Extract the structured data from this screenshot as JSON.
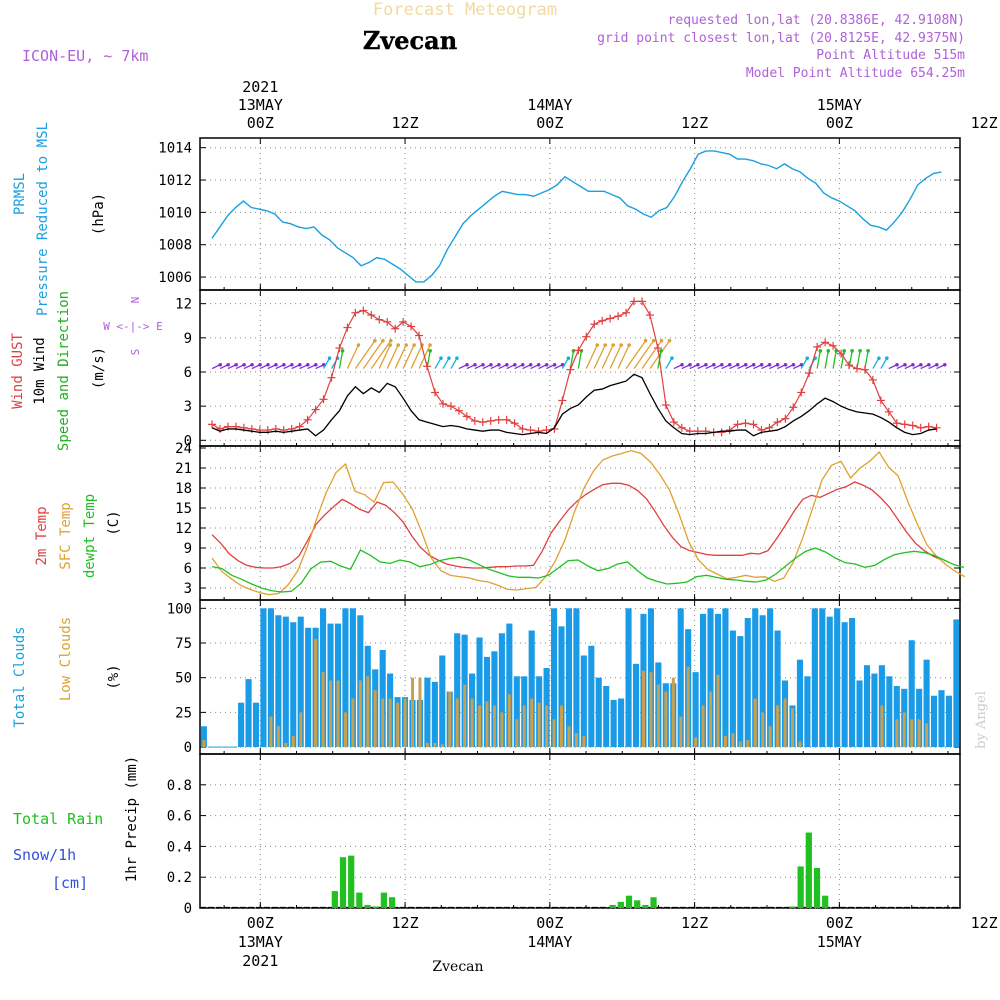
{
  "header": {
    "title": "Forecast Meteogram",
    "location": "Zvecan",
    "model": "ICON-EU, ~ 7km",
    "requested": "requested lon,lat (20.8386E, 42.9108N)",
    "gridpoint": "grid point closest lon,lat (20.8125E, 42.9375N)",
    "point_alt": "Point Altitude 515m",
    "model_alt": "Model Point Altitude 654.25m",
    "footer": "Zvecan",
    "watermark": "by Angel"
  },
  "time_axis": {
    "top_labels": [
      {
        "line1": "2021",
        "line2": "13MAY",
        "line3": "00Z"
      },
      {
        "line1": "",
        "line2": "",
        "line3": "12Z"
      },
      {
        "line1": "",
        "line2": "14MAY",
        "line3": "00Z"
      },
      {
        "line1": "",
        "line2": "",
        "line3": "12Z"
      },
      {
        "line1": "",
        "line2": "15MAY",
        "line3": "00Z"
      },
      {
        "line1": "",
        "line2": "",
        "line3": "12Z"
      }
    ],
    "bottom_labels": [
      {
        "line1": "00Z",
        "line2": "13MAY",
        "line3": "2021"
      },
      {
        "line1": "12Z",
        "line2": "",
        "line3": ""
      },
      {
        "line1": "00Z",
        "line2": "14MAY",
        "line3": ""
      },
      {
        "line1": "12Z",
        "line2": "",
        "line3": ""
      },
      {
        "line1": "00Z",
        "line2": "15MAY",
        "line3": ""
      },
      {
        "line1": "12Z",
        "line2": "",
        "line3": ""
      }
    ],
    "start_hour": -5,
    "end_hour": 58
  },
  "chart_data": [
    {
      "type": "line",
      "id": "pressure",
      "ylabel_lines": [
        "PRMSL",
        "Pressure Reduced to MSL"
      ],
      "unit": "(hPa)",
      "color": "#1aa0e0",
      "ylim": [
        1005.2,
        1014.6
      ],
      "yticks": [
        1006,
        1008,
        1010,
        1012,
        1014
      ],
      "start_hour": -4,
      "values": [
        1008.4,
        1009.1,
        1009.8,
        1010.3,
        1010.7,
        1010.3,
        1010.2,
        1010.1,
        1009.9,
        1009.4,
        1009.3,
        1009.1,
        1009.0,
        1009.1,
        1008.6,
        1008.3,
        1007.8,
        1007.5,
        1007.2,
        1006.7,
        1006.9,
        1007.2,
        1007.1,
        1006.8,
        1006.5,
        1006.1,
        1005.7,
        1005.7,
        1006.1,
        1006.7,
        1007.7,
        1008.5,
        1009.3,
        1009.8,
        1010.2,
        1010.6,
        1011.0,
        1011.3,
        1011.2,
        1011.1,
        1011.1,
        1011.0,
        1011.2,
        1011.4,
        1011.7,
        1012.2,
        1011.9,
        1011.6,
        1011.3,
        1011.3,
        1011.3,
        1011.1,
        1010.9,
        1010.4,
        1010.2,
        1009.9,
        1009.7,
        1010.1,
        1010.3,
        1011.0,
        1011.9,
        1012.7,
        1013.6,
        1013.8,
        1013.8,
        1013.7,
        1013.6,
        1013.3,
        1013.3,
        1013.2,
        1013.0,
        1012.9,
        1012.7,
        1013.0,
        1012.7,
        1012.5,
        1012.1,
        1011.8,
        1011.2,
        1010.9,
        1010.7,
        1010.4,
        1010.1,
        1009.6,
        1009.2,
        1009.1,
        1008.9,
        1009.4,
        1010.0,
        1010.8,
        1011.7,
        1012.1,
        1012.4,
        1012.5
      ]
    },
    {
      "type": "line",
      "id": "wind",
      "ylabel_lines": [
        "Wind GUST",
        "10m Wind",
        "Speed and Direction"
      ],
      "unit": "(m/s)",
      "compass": [
        "N",
        "W <-|-> E",
        "S"
      ],
      "ylim": [
        -0.5,
        13.2
      ],
      "yticks": [
        0,
        3,
        6,
        9,
        12
      ],
      "start_hour": -4,
      "series": [
        {
          "name": "Wind GUST",
          "color": "#e04040",
          "values": [
            1.4,
            1.0,
            1.2,
            1.2,
            1.1,
            1.0,
            0.9,
            0.9,
            1.0,
            0.9,
            1.0,
            1.2,
            1.8,
            2.7,
            3.6,
            5.5,
            8.1,
            9.9,
            11.2,
            11.4,
            11.0,
            10.6,
            10.4,
            9.8,
            10.4,
            10.0,
            9.2,
            6.5,
            4.2,
            3.2,
            3.0,
            2.6,
            2.1,
            1.7,
            1.6,
            1.7,
            1.8,
            1.8,
            1.5,
            1.0,
            0.9,
            0.8,
            0.9,
            1.0,
            3.5,
            6.2,
            7.9,
            9.1,
            10.2,
            10.5,
            10.7,
            10.9,
            11.2,
            12.2,
            12.2,
            11.0,
            8.1,
            3.1,
            1.6,
            1.1,
            0.8,
            0.8,
            0.8,
            0.7,
            0.7,
            0.9,
            1.4,
            1.5,
            1.4,
            0.9,
            1.1,
            1.6,
            1.9,
            2.9,
            4.2,
            5.9,
            8.2,
            8.6,
            8.3,
            7.6,
            6.6,
            6.3,
            6.2,
            5.3,
            3.5,
            2.5,
            1.5,
            1.4,
            1.3,
            1.1,
            1.2,
            1.1
          ]
        },
        {
          "name": "10m Wind",
          "color": "#000000",
          "values": [
            1.1,
            0.8,
            1.0,
            1.0,
            0.9,
            0.8,
            0.7,
            0.7,
            0.8,
            0.7,
            0.8,
            0.9,
            1.0,
            0.4,
            0.9,
            1.8,
            2.6,
            3.9,
            4.7,
            4.1,
            4.6,
            4.2,
            5.0,
            4.7,
            3.7,
            2.6,
            1.8,
            1.6,
            1.4,
            1.2,
            1.3,
            1.2,
            1.0,
            0.9,
            0.8,
            0.9,
            0.9,
            0.7,
            0.6,
            0.5,
            0.6,
            0.7,
            0.6,
            1.1,
            2.3,
            2.8,
            3.1,
            3.8,
            4.4,
            4.5,
            4.8,
            5.0,
            5.2,
            5.8,
            5.5,
            4.1,
            2.8,
            1.7,
            1.1,
            0.6,
            0.5,
            0.6,
            0.6,
            0.7,
            0.8,
            0.8,
            0.9,
            0.9,
            0.4,
            0.7,
            0.8,
            0.9,
            1.2,
            1.7,
            2.1,
            2.6,
            3.2,
            3.7,
            3.4,
            3.0,
            2.7,
            2.5,
            2.4,
            2.3,
            2.0,
            1.6,
            1.1,
            0.7,
            0.5,
            0.6,
            0.9,
            1.0
          ]
        }
      ]
    },
    {
      "type": "line",
      "id": "temperature",
      "ylabel_lines": [
        "2m Temp",
        "SFC Temp",
        "dewpt Temp"
      ],
      "unit": "(C)",
      "ylim": [
        1.2,
        24.3
      ],
      "yticks": [
        3,
        6,
        9,
        12,
        15,
        18,
        21,
        24
      ],
      "start_hour": -4,
      "series": [
        {
          "name": "2m Temp",
          "color": "#e04040",
          "values": [
            11.0,
            9.7,
            8.1,
            7.1,
            6.4,
            6.1,
            6.0,
            6.0,
            6.2,
            6.7,
            7.8,
            10.1,
            12.6,
            14.0,
            15.2,
            16.3,
            15.6,
            14.8,
            14.3,
            15.9,
            15.4,
            14.3,
            12.9,
            10.8,
            9.1,
            7.9,
            7.2,
            6.6,
            6.3,
            6.1,
            6.0,
            6.0,
            6.1,
            6.2,
            6.2,
            6.3,
            6.3,
            6.4,
            8.5,
            11.2,
            13.0,
            14.7,
            16.0,
            17.0,
            17.8,
            18.5,
            18.7,
            18.7,
            18.4,
            17.6,
            16.4,
            14.5,
            12.4,
            10.6,
            9.2,
            8.6,
            8.3,
            8.0,
            7.9,
            7.9,
            7.9,
            7.9,
            8.2,
            8.1,
            8.6,
            10.4,
            12.4,
            14.5,
            16.3,
            16.9,
            16.6,
            17.2,
            17.8,
            18.2,
            18.9,
            18.4,
            17.7,
            16.5,
            15.1,
            13.2,
            11.3,
            9.7,
            8.6,
            7.8,
            7.2
          ]
        },
        {
          "name": "SFC Temp",
          "color": "#e0a030",
          "values": [
            7.5,
            5.5,
            4.4,
            3.4,
            2.8,
            2.3,
            2.0,
            2.2,
            3.5,
            5.6,
            9.2,
            13.5,
            17.4,
            20.3,
            21.6,
            17.5,
            17.0,
            15.9,
            18.8,
            18.9,
            17.1,
            14.9,
            11.4,
            7.5,
            5.6,
            4.9,
            4.7,
            4.5,
            4.1,
            3.9,
            3.4,
            2.8,
            2.7,
            2.9,
            3.1,
            4.7,
            7.0,
            10.1,
            14.3,
            17.9,
            20.5,
            22.2,
            22.8,
            23.2,
            23.6,
            23.2,
            21.9,
            20.0,
            17.7,
            14.1,
            10.0,
            7.3,
            5.8,
            5.1,
            4.4,
            4.6,
            4.9,
            4.6,
            4.7,
            4.0,
            4.5,
            6.9,
            10.6,
            14.9,
            19.2,
            21.4,
            22.0,
            19.5,
            21.0,
            22.0,
            23.4,
            21.1,
            19.8,
            16.0,
            12.6,
            9.5,
            7.8,
            6.5,
            5.5,
            4.7
          ]
        },
        {
          "name": "dewpt Temp",
          "color": "#20c020",
          "values": [
            6.2,
            5.9,
            4.9,
            4.3,
            3.6,
            3.0,
            2.6,
            2.4,
            2.5,
            3.7,
            5.9,
            6.9,
            7.0,
            6.3,
            5.8,
            8.7,
            7.9,
            6.9,
            6.7,
            7.2,
            6.9,
            6.2,
            6.5,
            7.1,
            7.4,
            7.6,
            7.2,
            6.5,
            5.8,
            5.3,
            4.8,
            4.6,
            4.6,
            4.5,
            4.9,
            6.0,
            7.1,
            7.2,
            6.3,
            5.6,
            5.9,
            6.6,
            6.9,
            5.6,
            4.5,
            4.0,
            3.6,
            3.7,
            3.9,
            4.7,
            4.9,
            4.6,
            4.3,
            4.2,
            4.0,
            3.9,
            4.2,
            5.1,
            6.3,
            7.5,
            8.5,
            9.0,
            8.4,
            7.5,
            6.8,
            6.6,
            6.1,
            6.4,
            7.3,
            8.0,
            8.3,
            8.5,
            8.3,
            7.9,
            7.2,
            6.5,
            6.1
          ]
        }
      ]
    },
    {
      "type": "bar",
      "id": "clouds",
      "ylabel_lines": [
        "Total Clouds",
        "Low Clouds"
      ],
      "unit": "(%)",
      "ylim": [
        -5,
        106
      ],
      "yticks": [
        0,
        25,
        50,
        75,
        100
      ],
      "start_hour": -4,
      "series": [
        {
          "name": "Total Clouds",
          "color": "#1a9be8",
          "values": [
            15,
            0,
            0,
            0,
            0,
            32,
            49,
            32,
            100,
            100,
            95,
            94,
            90,
            94,
            86,
            86,
            100,
            89,
            89,
            100,
            100,
            95,
            73,
            56,
            70,
            53,
            36,
            36,
            34,
            34,
            50,
            47,
            66,
            40,
            82,
            81,
            53,
            79,
            65,
            69,
            82,
            89,
            51,
            51,
            84,
            51,
            57,
            100,
            87,
            100,
            100,
            66,
            73,
            50,
            44,
            34,
            35,
            100,
            60,
            96,
            100,
            61,
            46,
            46,
            100,
            85,
            54,
            96,
            100,
            96,
            100,
            84,
            80,
            93,
            100,
            95,
            100,
            84,
            48,
            30,
            63,
            51,
            100,
            100,
            94,
            100,
            90,
            93,
            48,
            59,
            53,
            59,
            51,
            44,
            42,
            77,
            42,
            63,
            37,
            41,
            37,
            92
          ]
        },
        {
          "name": "Low Clouds",
          "color": "#c8a050",
          "values": [
            5,
            0,
            0,
            0,
            0,
            0,
            0,
            0,
            0,
            22,
            15,
            3,
            8,
            25,
            0,
            78,
            54,
            48,
            48,
            25,
            35,
            48,
            51,
            41,
            35,
            35,
            32,
            35,
            50,
            50,
            3,
            3,
            2,
            40,
            35,
            45,
            35,
            30,
            33,
            30,
            25,
            38,
            20,
            30,
            35,
            32,
            30,
            20,
            30,
            15,
            10,
            8,
            0,
            0,
            0,
            0,
            0,
            0,
            0,
            55,
            54,
            45,
            40,
            50,
            22,
            58,
            7,
            30,
            40,
            52,
            8,
            10,
            4,
            5,
            35,
            25,
            15,
            30,
            35,
            28,
            4,
            0,
            0,
            0,
            0,
            0,
            0,
            0,
            0,
            0,
            0,
            30,
            0,
            20,
            25,
            20,
            20,
            17
          ]
        }
      ]
    },
    {
      "type": "bar",
      "id": "precip",
      "ylabel_lines": [
        "1hr Precip (mm)"
      ],
      "side_labels": [
        "Total  Rain",
        "Snow/1h",
        "[cm]"
      ],
      "ylim": [
        0,
        1.0
      ],
      "yticks": [
        0,
        0.2,
        0.4,
        0.6,
        0.8
      ],
      "ytick_labels": [
        "0",
        "0.2",
        "0.4",
        "0.6",
        "0.8"
      ],
      "start_hour": -4,
      "series": [
        {
          "name": "Total Rain",
          "color": "#20c020",
          "values": [
            0,
            0,
            0,
            0,
            0,
            0,
            0,
            0,
            0,
            0,
            0,
            0,
            0,
            0,
            0,
            0,
            0.11,
            0.33,
            0.34,
            0.1,
            0.02,
            0.01,
            0.1,
            0.07,
            0,
            0,
            0,
            0,
            0,
            0,
            0,
            0,
            0,
            0,
            0,
            0,
            0,
            0,
            0,
            0,
            0,
            0,
            0,
            0,
            0,
            0,
            0,
            0,
            0,
            0,
            0.02,
            0.04,
            0.08,
            0.05,
            0.02,
            0.07,
            0,
            0,
            0,
            0,
            0,
            0,
            0,
            0,
            0,
            0,
            0,
            0,
            0,
            0,
            0,
            0,
            0.01,
            0.27,
            0.49,
            0.26,
            0.08,
            0,
            0,
            0,
            0,
            0,
            0,
            0,
            0,
            0,
            0,
            0,
            0,
            0,
            0,
            0,
            0
          ]
        }
      ]
    }
  ]
}
